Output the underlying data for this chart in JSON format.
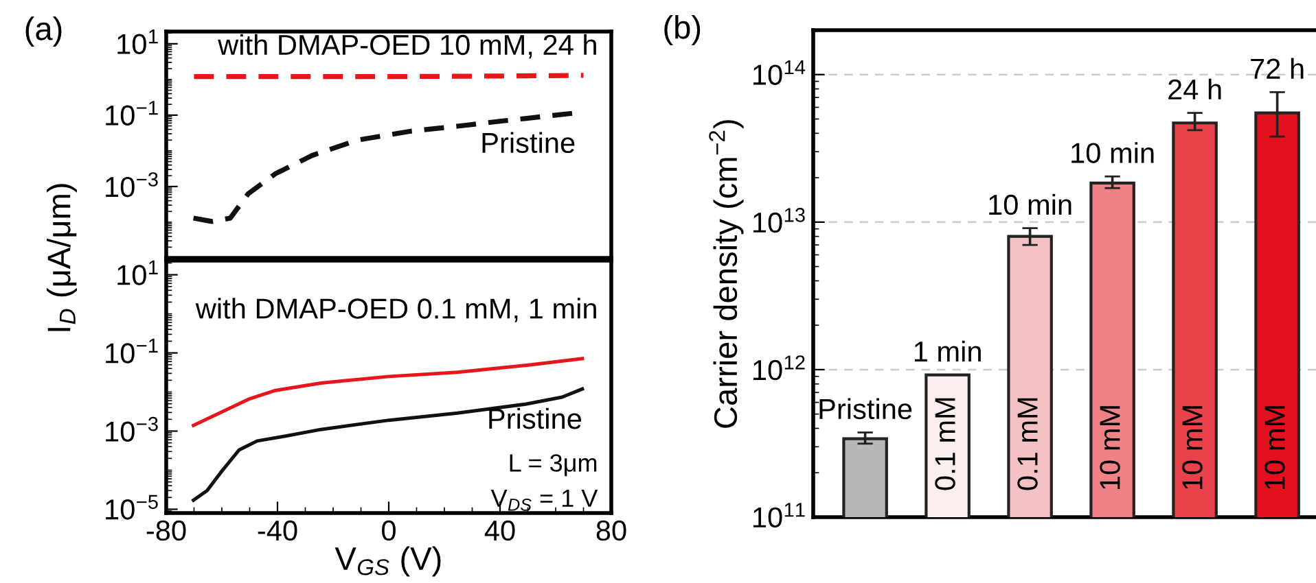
{
  "chart_data": [
    {
      "type": "line",
      "title": "(a)",
      "ylabel": "I$_{D}$ (μA/μm)",
      "log": "y",
      "line_style": "dashed",
      "tick_labels": "y",
      "xlim": [
        -80,
        80
      ],
      "ylim": [
        1e-05,
        22
      ],
      "yticks": [
        {
          "value": 10,
          "label": "10$^{1}$"
        },
        {
          "value": 0.1,
          "label": "10$^{−1}$"
        },
        {
          "value": 0.001,
          "label": "10$^{−3}$"
        }
      ],
      "annotations": [
        "with DMAP-OED 10 mM, 24 h"
      ],
      "series": [
        {
          "name": "Pristine",
          "color": "#111111",
          "x": [
            -70.2,
            -63.6,
            -57,
            -50.5,
            -40.7,
            -27.6,
            -11.3,
            8.3,
            24.7,
            41.1,
            67.2
          ],
          "values": [
            0.00013,
            0.000105,
            0.00013,
            0.00063,
            0.0023,
            0.0074,
            0.02,
            0.036,
            0.049,
            0.069,
            0.115
          ]
        },
        {
          "color": "#e8161b",
          "x": [
            -70,
            -40,
            0,
            40,
            70
          ],
          "values": [
            1.2,
            1.2,
            1.2,
            1.25,
            1.3
          ]
        }
      ]
    },
    {
      "type": "line",
      "xlabel": "V$_{GS}$ (V)",
      "log": "y",
      "line_style": "solid",
      "xlim": [
        -80,
        80
      ],
      "ylim": [
        8e-06,
        23
      ],
      "xticks": [
        -80,
        -40,
        0,
        40,
        80
      ],
      "yticks": [
        {
          "value": 10,
          "label": "10$^{1}$"
        },
        {
          "value": 0.1,
          "label": "10$^{−1}$"
        },
        {
          "value": 0.001,
          "label": "10$^{−3}$"
        },
        {
          "value": 1e-05,
          "label": "10$^{−5}$"
        }
      ],
      "annotations": [
        "with DMAP-OED 0.1 mM, 1 min",
        "L = 3μm",
        "V$_{DS}$ = 1 V"
      ],
      "series": [
        {
          "name": "Pristine",
          "color": "#111111",
          "x": [
            -70.2,
            -65.3,
            -60.4,
            -53.8,
            -47.3,
            -37.4,
            -24.4,
            0.1,
            24.7,
            49.2,
            62.3,
            69.6
          ],
          "values": [
            1.7e-05,
            3e-05,
            8.7e-05,
            0.00033,
            0.00056,
            0.00074,
            0.0011,
            0.0019,
            0.0029,
            0.0049,
            0.0074,
            0.012
          ]
        },
        {
          "color": "#e8161b",
          "x": [
            -70.2,
            -50.5,
            -40.7,
            -24.4,
            0.1,
            24.7,
            49.2,
            69.6
          ],
          "values": [
            0.0014,
            0.0065,
            0.011,
            0.017,
            0.025,
            0.032,
            0.048,
            0.072
          ]
        }
      ]
    },
    {
      "type": "bar",
      "title": "(b)",
      "ylabel": "Carrier density (cm$^{−2}$)",
      "log": "y",
      "grid": "y",
      "ylim": [
        100000000000.0,
        200000000000000.0
      ],
      "yticks": [
        {
          "value": 100000000000.0,
          "label": "10$^{11}$"
        },
        {
          "value": 1000000000000.0,
          "label": "10$^{12}$"
        },
        {
          "value": 10000000000000.0,
          "label": "10$^{13}$"
        },
        {
          "value": 100000000000000.0,
          "label": "10$^{14}$"
        }
      ],
      "categories": [
        null,
        null,
        null,
        null,
        null,
        null
      ],
      "values": [
        340000000000.0,
        920000000000.0,
        8000000000000.0,
        18400000000000.0,
        47000000000000.0,
        55000000000000.0
      ],
      "errors": [
        [
          315000000000.0,
          375000000000.0
        ],
        null,
        [
          7000000000000.0,
          9100000000000.0
        ],
        [
          17000000000000.0,
          20400000000000.0
        ],
        [
          42000000000000.0,
          55000000000000.0
        ],
        [
          38000000000000.0,
          76000000000000.0
        ]
      ],
      "colors": [
        "#b8b8b8",
        "#fbeeee",
        "#f4c2c4",
        "#ef8287",
        "#e8424a",
        "#e3101d"
      ],
      "annotations": [
        "Pristine",
        "1 min",
        "10 min",
        "10 min",
        "24 h",
        "72 h",
        "0.1 mM",
        "0.1 mM",
        "10 mM",
        "10 mM",
        "10 mM"
      ]
    }
  ]
}
